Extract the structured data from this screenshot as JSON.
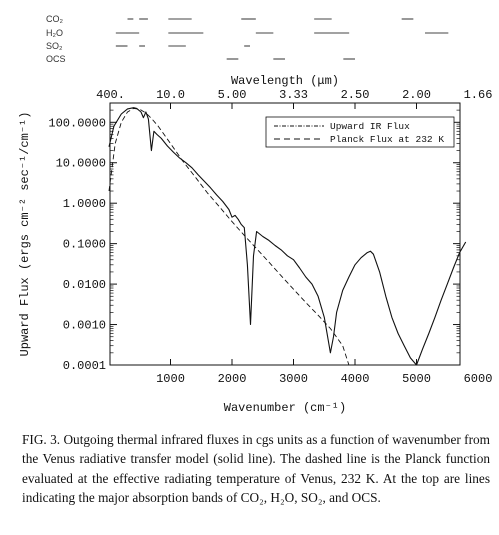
{
  "chart_data": {
    "type": "line",
    "xlabel": "Wavenumber (cm⁻¹)",
    "top_xlabel": "Wavelength (μm)",
    "ylabel": "Upward Flux (ergs cm⁻² sec⁻¹/cm⁻¹)",
    "log_y": true,
    "xlim": [
      0,
      6000
    ],
    "ylim": [
      0.0001,
      300
    ],
    "x_ticks": [
      "1000",
      "2000",
      "3000",
      "4000",
      "5000",
      "6000"
    ],
    "y_ticks": [
      "100.0000",
      "10.0000",
      "1.0000",
      "0.1000",
      "0.0100",
      "0.0010",
      "0.0001"
    ],
    "top_ticks": [
      "400.",
      "10.0",
      "5.00",
      "3.33",
      "2.50",
      "2.00",
      "1.66"
    ],
    "top_tick_wavenumbers": [
      25,
      1000,
      2000,
      3000,
      4000,
      5000,
      6000
    ],
    "legend": {
      "position": "top-right",
      "entries": [
        "Upward IR Flux",
        "Planck Flux at 232 K"
      ]
    },
    "series": [
      {
        "name": "Upward IR Flux",
        "style": "solid",
        "x": [
          0,
          80,
          200,
          300,
          400,
          450,
          520,
          560,
          600,
          640,
          690,
          730,
          780,
          850,
          950,
          1050,
          1150,
          1250,
          1350,
          1450,
          1550,
          1650,
          1750,
          1850,
          1950,
          2000,
          2050,
          2100,
          2150,
          2200,
          2250,
          2300,
          2350,
          2400,
          2500,
          2600,
          2700,
          2800,
          2900,
          3000,
          3100,
          3200,
          3300,
          3400,
          3500,
          3600,
          3650,
          3700,
          3800,
          3900,
          4000,
          4100,
          4200,
          4250,
          4300,
          4400,
          4500,
          4600,
          4700,
          4800,
          4900,
          5000,
          5100,
          5200,
          5300,
          5400,
          5500,
          5600,
          5700,
          5800
        ],
        "y": [
          25,
          80,
          160,
          215,
          230,
          220,
          180,
          130,
          180,
          120,
          20,
          60,
          50,
          40,
          26,
          18,
          13,
          10,
          7.5,
          5,
          3.5,
          2.4,
          1.6,
          1.1,
          0.7,
          0.45,
          0.5,
          0.4,
          0.3,
          0.25,
          0.03,
          0.001,
          0.05,
          0.2,
          0.15,
          0.12,
          0.09,
          0.07,
          0.05,
          0.04,
          0.025,
          0.015,
          0.01,
          0.005,
          0.0015,
          0.0002,
          0.0005,
          0.002,
          0.007,
          0.015,
          0.03,
          0.045,
          0.06,
          0.065,
          0.055,
          0.02,
          0.005,
          0.0015,
          0.0006,
          0.0003,
          0.00015,
          0.0001,
          0.00025,
          0.0006,
          0.0015,
          0.004,
          0.01,
          0.025,
          0.06,
          0.11
        ]
      },
      {
        "name": "Planck Flux at 232 K",
        "style": "dashed",
        "x": [
          0,
          100,
          200,
          300,
          400,
          500,
          600,
          700,
          800,
          1000,
          1200,
          1400,
          1600,
          1800,
          2000,
          2200,
          2400,
          2600,
          2800,
          3000,
          3200,
          3400,
          3600,
          3800,
          3900
        ],
        "y": [
          2,
          30,
          100,
          180,
          220,
          210,
          170,
          120,
          80,
          30,
          11,
          4.5,
          1.8,
          0.8,
          0.35,
          0.16,
          0.075,
          0.035,
          0.016,
          0.0075,
          0.0035,
          0.0017,
          0.0008,
          0.0003,
          0.0001
        ]
      }
    ]
  },
  "absorption_bands": {
    "labels": [
      "CO₂",
      "H₂O",
      "SO₂",
      "OCS"
    ],
    "segments": [
      [
        [
          300,
          400
        ],
        [
          500,
          650
        ],
        [
          1000,
          1400
        ],
        [
          2250,
          2500
        ],
        [
          3500,
          3800
        ],
        [
          5000,
          5200
        ]
      ],
      [
        [
          100,
          500
        ],
        [
          1000,
          1600
        ],
        [
          2500,
          2800
        ],
        [
          3500,
          4100
        ],
        [
          5400,
          5800
        ]
      ],
      [
        [
          100,
          300
        ],
        [
          500,
          600
        ],
        [
          1000,
          1300
        ],
        [
          2300,
          2400
        ]
      ],
      [
        [
          2000,
          2200
        ],
        [
          2800,
          3000
        ],
        [
          4000,
          4200
        ]
      ]
    ]
  },
  "caption": "FIG. 3.  Outgoing thermal infrared fluxes in cgs units as a function of wavenumber from the Venus radiative transfer model (solid line). The dashed line is the Planck function evaluated at the effective radiating temperature of Venus, 232 K. At the top are lines indicating the major absorption bands of CO₂, H₂O, SO₂, and OCS."
}
